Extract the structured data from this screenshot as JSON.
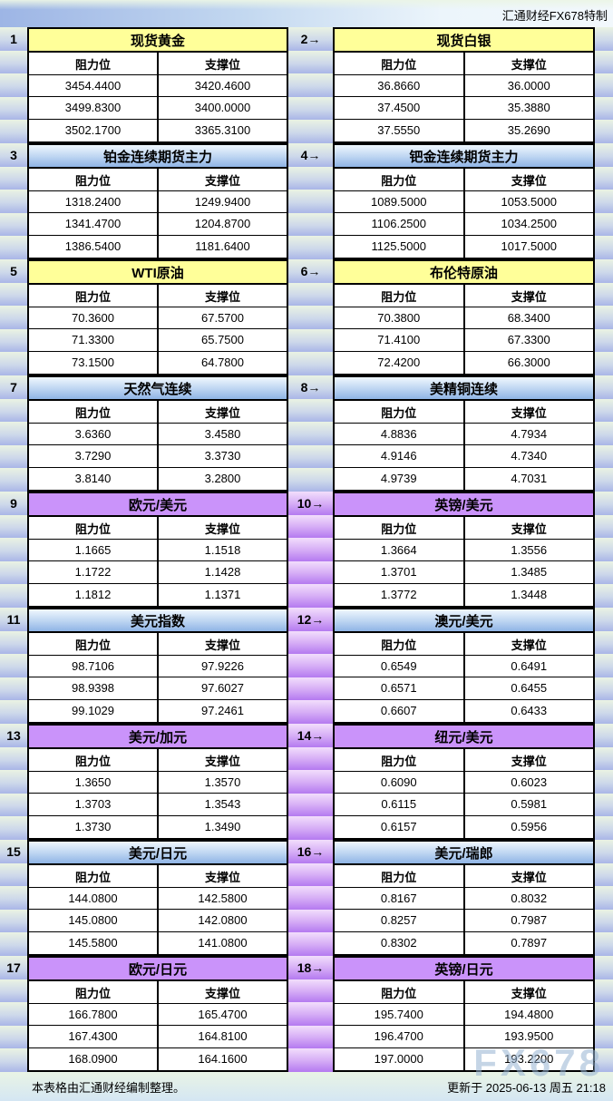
{
  "header": {
    "brand": "汇通财经FX678特制"
  },
  "columns": {
    "resistance": "阻力位",
    "support": "支撑位"
  },
  "footer": {
    "left": "本表格由汇通财经编制整理。",
    "right": "更新于 2025-06-13 周五 21:18",
    "watermark": "FX678"
  },
  "palette": {
    "yellow_header": "#ffff99",
    "blue_header_bottom": "#8fb4e6",
    "purple_header": "#ca93fa",
    "gutter_gradient_top": "#eaf3e3",
    "gutter_gradient_bottom": "#a9b5e7",
    "purple_gutter_bottom": "#b47af0"
  },
  "pairs": [
    {
      "spacer": "green",
      "left": {
        "marker": "1",
        "title": "现货黄金",
        "style": "yellow",
        "rows": [
          [
            "3454.4400",
            "3420.4600"
          ],
          [
            "3499.8300",
            "3400.0000"
          ],
          [
            "3502.1700",
            "3365.3100"
          ]
        ]
      },
      "right": {
        "marker": "2→",
        "title": "现货白银",
        "style": "yellow",
        "rows": [
          [
            "36.8660",
            "36.0000"
          ],
          [
            "37.4500",
            "35.3880"
          ],
          [
            "37.5550",
            "35.2690"
          ]
        ]
      }
    },
    {
      "spacer": "green",
      "left": {
        "marker": "3",
        "title": "铂金连续期货主力",
        "style": "blue",
        "rows": [
          [
            "1318.2400",
            "1249.9400"
          ],
          [
            "1341.4700",
            "1204.8700"
          ],
          [
            "1386.5400",
            "1181.6400"
          ]
        ]
      },
      "right": {
        "marker": "4→",
        "title": "钯金连续期货主力",
        "style": "blue",
        "rows": [
          [
            "1089.5000",
            "1053.5000"
          ],
          [
            "1106.2500",
            "1034.2500"
          ],
          [
            "1125.5000",
            "1017.5000"
          ]
        ]
      }
    },
    {
      "spacer": "green",
      "left": {
        "marker": "5",
        "title": "WTI原油",
        "style": "yellow",
        "rows": [
          [
            "70.3600",
            "67.5700"
          ],
          [
            "71.3300",
            "65.7500"
          ],
          [
            "73.1500",
            "64.7800"
          ]
        ]
      },
      "right": {
        "marker": "6→",
        "title": "布伦特原油",
        "style": "yellow",
        "rows": [
          [
            "70.3800",
            "68.3400"
          ],
          [
            "71.4100",
            "67.3300"
          ],
          [
            "72.4200",
            "66.3000"
          ]
        ]
      }
    },
    {
      "spacer": "green",
      "left": {
        "marker": "7",
        "title": "天然气连续",
        "style": "blue",
        "rows": [
          [
            "3.6360",
            "3.4580"
          ],
          [
            "3.7290",
            "3.3730"
          ],
          [
            "3.8140",
            "3.2800"
          ]
        ]
      },
      "right": {
        "marker": "8→",
        "title": "美精铜连续",
        "style": "blue",
        "rows": [
          [
            "4.8836",
            "4.7934"
          ],
          [
            "4.9146",
            "4.7340"
          ],
          [
            "4.9739",
            "4.7031"
          ]
        ]
      }
    },
    {
      "spacer": "purple",
      "left": {
        "marker": "9",
        "title": "欧元/美元",
        "style": "purple",
        "rows": [
          [
            "1.1665",
            "1.1518"
          ],
          [
            "1.1722",
            "1.1428"
          ],
          [
            "1.1812",
            "1.1371"
          ]
        ]
      },
      "right": {
        "marker": "10→",
        "title": "英镑/美元",
        "style": "purple",
        "rows": [
          [
            "1.3664",
            "1.3556"
          ],
          [
            "1.3701",
            "1.3485"
          ],
          [
            "1.3772",
            "1.3448"
          ]
        ]
      }
    },
    {
      "spacer": "purple",
      "left": {
        "marker": "11",
        "title": "美元指数",
        "style": "blue",
        "rows": [
          [
            "98.7106",
            "97.9226"
          ],
          [
            "98.9398",
            "97.6027"
          ],
          [
            "99.1029",
            "97.2461"
          ]
        ]
      },
      "right": {
        "marker": "12→",
        "title": "澳元/美元",
        "style": "blue",
        "rows": [
          [
            "0.6549",
            "0.6491"
          ],
          [
            "0.6571",
            "0.6455"
          ],
          [
            "0.6607",
            "0.6433"
          ]
        ]
      }
    },
    {
      "spacer": "purple",
      "left": {
        "marker": "13",
        "title": "美元/加元",
        "style": "purple",
        "rows": [
          [
            "1.3650",
            "1.3570"
          ],
          [
            "1.3703",
            "1.3543"
          ],
          [
            "1.3730",
            "1.3490"
          ]
        ]
      },
      "right": {
        "marker": "14→",
        "title": "纽元/美元",
        "style": "purple",
        "rows": [
          [
            "0.6090",
            "0.6023"
          ],
          [
            "0.6115",
            "0.5981"
          ],
          [
            "0.6157",
            "0.5956"
          ]
        ]
      }
    },
    {
      "spacer": "purple",
      "left": {
        "marker": "15",
        "title": "美元/日元",
        "style": "blue",
        "rows": [
          [
            "144.0800",
            "142.5800"
          ],
          [
            "145.0800",
            "142.0800"
          ],
          [
            "145.5800",
            "141.0800"
          ]
        ]
      },
      "right": {
        "marker": "16→",
        "title": "美元/瑞郎",
        "style": "blue",
        "rows": [
          [
            "0.8167",
            "0.8032"
          ],
          [
            "0.8257",
            "0.7987"
          ],
          [
            "0.8302",
            "0.7897"
          ]
        ]
      }
    },
    {
      "spacer": "purple",
      "left": {
        "marker": "17",
        "title": "欧元/日元",
        "style": "purple",
        "rows": [
          [
            "166.7800",
            "165.4700"
          ],
          [
            "167.4300",
            "164.8100"
          ],
          [
            "168.0900",
            "164.1600"
          ]
        ]
      },
      "right": {
        "marker": "18→",
        "title": "英镑/日元",
        "style": "purple",
        "rows": [
          [
            "195.7400",
            "194.4800"
          ],
          [
            "196.4700",
            "193.9500"
          ],
          [
            "197.0000",
            "193.2200"
          ]
        ]
      }
    }
  ]
}
